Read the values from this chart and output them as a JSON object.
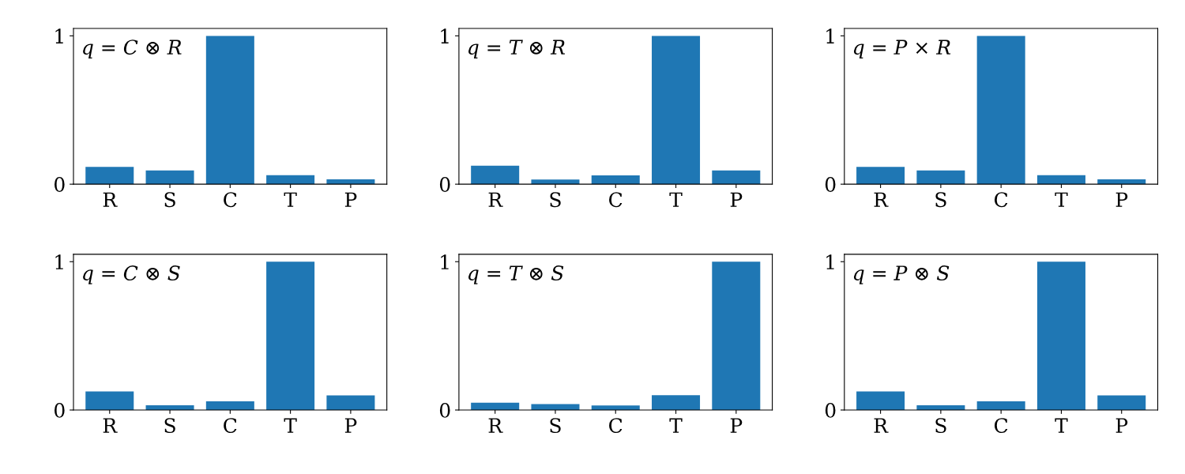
{
  "chart_data": [
    {
      "type": "bar",
      "categories": [
        "R",
        "S",
        "C",
        "T",
        "P"
      ],
      "values": [
        0.116,
        0.093,
        1.0,
        0.061,
        0.033
      ],
      "color": "#1f77b4",
      "ylim": [
        0,
        1.05
      ],
      "yticks": [
        0,
        1
      ],
      "grid": false,
      "annotations": [
        "q = C ⊗ R"
      ]
    },
    {
      "type": "bar",
      "categories": [
        "R",
        "S",
        "C",
        "T",
        "P"
      ],
      "values": [
        0.125,
        0.032,
        0.06,
        1.0,
        0.093
      ],
      "color": "#1f77b4",
      "ylim": [
        0,
        1.05
      ],
      "yticks": [
        0,
        1
      ],
      "grid": false,
      "annotations": [
        "q = T ⊗ R"
      ]
    },
    {
      "type": "bar",
      "categories": [
        "R",
        "S",
        "C",
        "T",
        "P"
      ],
      "values": [
        0.116,
        0.093,
        1.0,
        0.061,
        0.033
      ],
      "color": "#1f77b4",
      "ylim": [
        0,
        1.05
      ],
      "yticks": [
        0,
        1
      ],
      "grid": false,
      "annotations": [
        "q = P × R"
      ]
    },
    {
      "type": "bar",
      "categories": [
        "R",
        "S",
        "C",
        "T",
        "P"
      ],
      "values": [
        0.125,
        0.032,
        0.058,
        1.0,
        0.098
      ],
      "color": "#1f77b4",
      "ylim": [
        0,
        1.05
      ],
      "yticks": [
        0,
        1
      ],
      "grid": false,
      "annotations": [
        "q = C ⊗ S"
      ]
    },
    {
      "type": "bar",
      "categories": [
        "R",
        "S",
        "C",
        "T",
        "P"
      ],
      "values": [
        0.049,
        0.04,
        0.03,
        0.1,
        1.0
      ],
      "color": "#1f77b4",
      "ylim": [
        0,
        1.05
      ],
      "yticks": [
        0,
        1
      ],
      "grid": false,
      "annotations": [
        "q = T ⊗ S"
      ]
    },
    {
      "type": "bar",
      "categories": [
        "R",
        "S",
        "C",
        "T",
        "P"
      ],
      "values": [
        0.125,
        0.032,
        0.058,
        1.0,
        0.098
      ],
      "color": "#1f77b4",
      "ylim": [
        0,
        1.05
      ],
      "yticks": [
        0,
        1
      ],
      "grid": false,
      "annotations": [
        "q = P ⊗ S"
      ]
    }
  ]
}
